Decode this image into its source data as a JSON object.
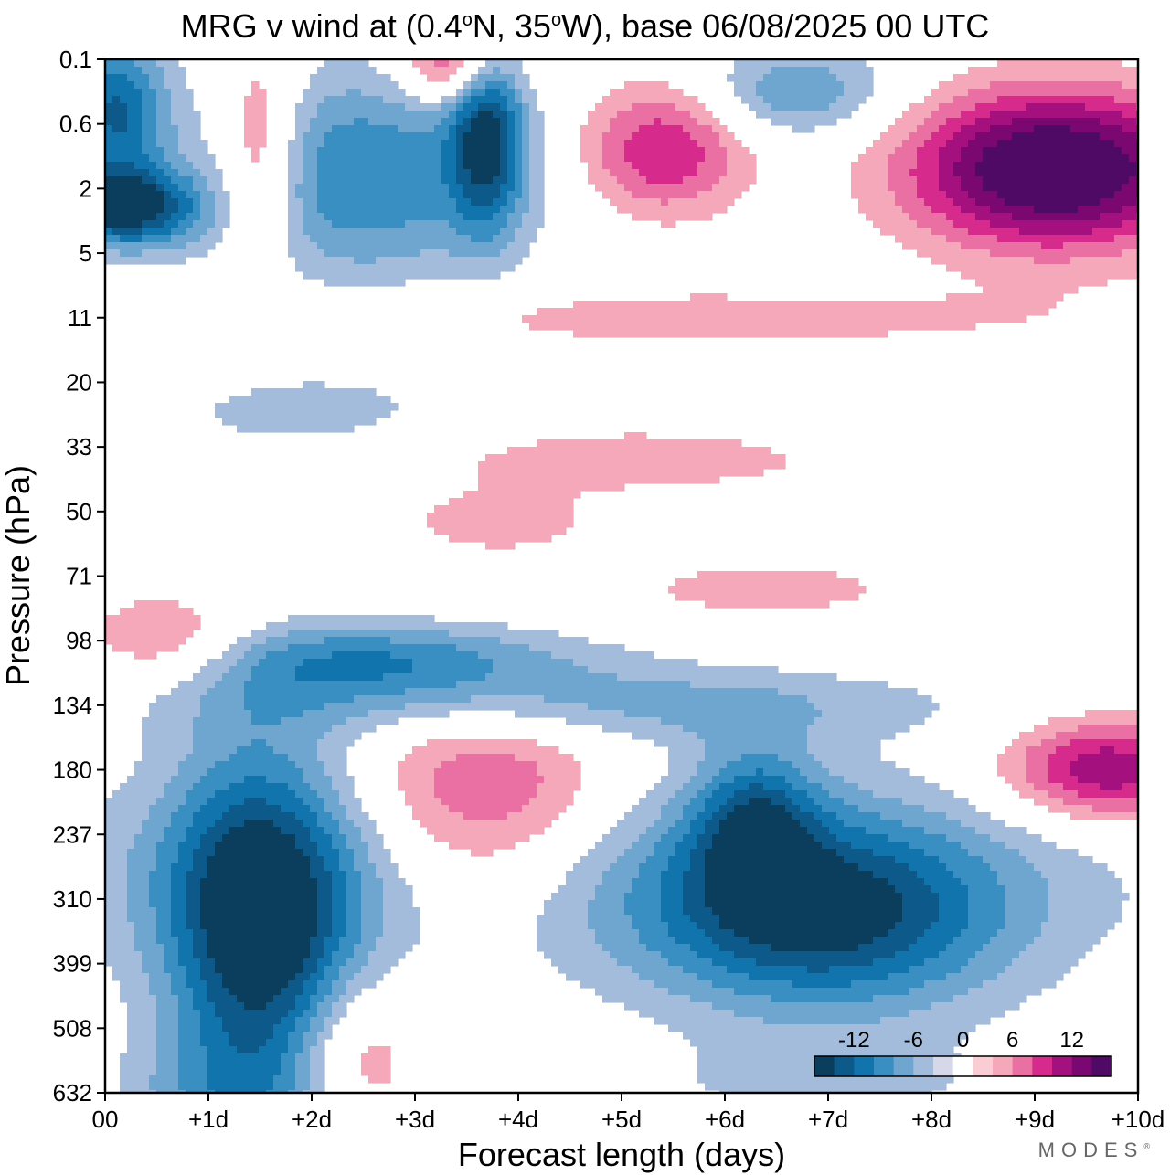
{
  "chart_data": {
    "type": "heatmap",
    "title_prefix": "MRG v wind at (0.4",
    "title_lat_unit": "N, 35",
    "title_lon_unit": "W),  base 06/08/2025  00 UTC",
    "degree_symbol": "o",
    "xlabel": "Forecast length (days)",
    "ylabel": "Pressure (hPa)",
    "x_ticks": [
      "00",
      "+1d",
      "+2d",
      "+3d",
      "+4d",
      "+5d",
      "+6d",
      "+7d",
      "+8d",
      "+9d",
      "+10d"
    ],
    "xlim": [
      0,
      10
    ],
    "y_ticks": [
      "0.1",
      "0.6",
      "2",
      "5",
      "11",
      "20",
      "33",
      "50",
      "71",
      "98",
      "134",
      "180",
      "237",
      "310",
      "399",
      "508",
      "632"
    ],
    "colorbar": {
      "tick_labels": [
        "-12",
        "-6",
        "0",
        "6",
        "12"
      ],
      "levels": [
        -14,
        -12,
        -10,
        -8,
        -6,
        -4,
        -2,
        0,
        2,
        4,
        6,
        8,
        10,
        12,
        14
      ],
      "colors": [
        "#0b3d5c",
        "#0d5a8a",
        "#1274ad",
        "#3a8fc2",
        "#6fa6cf",
        "#a4bcdb",
        "#d6d8ea",
        "#ffffff",
        "#f9cdd3",
        "#f4a8ba",
        "#ea6fa2",
        "#d62a8c",
        "#a4117e",
        "#7a0870",
        "#4e0a64"
      ]
    },
    "features": [
      {
        "day": 1.5,
        "level": 13.5,
        "value": -14,
        "ds": 0.9,
        "dl": 2.8
      },
      {
        "day": 3.7,
        "level": 11.6,
        "value": 8,
        "ds": 1.3,
        "dl": 1.8
      },
      {
        "day": 7.0,
        "level": 13.3,
        "value": -11,
        "ds": 1.7,
        "dl": 1.5
      },
      {
        "day": 6.3,
        "level": 11.8,
        "value": -8,
        "ds": 0.6,
        "dl": 1.2
      },
      {
        "day": 2.8,
        "level": 9.3,
        "value": -8,
        "ds": 1.9,
        "dl": 0.6
      },
      {
        "day": 4.6,
        "level": 10.0,
        "value": -5,
        "ds": 3.5,
        "dl": 0.6
      },
      {
        "day": 9.7,
        "level": 11.0,
        "value": 10,
        "ds": 1.0,
        "dl": 0.8
      },
      {
        "day": 0.6,
        "level": 9.0,
        "value": 5,
        "ds": 0.8,
        "dl": 0.7
      },
      {
        "day": 2.4,
        "level": 15.4,
        "value": 5,
        "ds": 0.6,
        "dl": 1.2
      },
      {
        "day": 9.2,
        "level": 1.7,
        "value": 16,
        "ds": 1.4,
        "dl": 1.2
      },
      {
        "day": 3.7,
        "level": 1.1,
        "value": -11,
        "ds": 0.35,
        "dl": 1.5
      },
      {
        "day": 0.2,
        "level": 2.3,
        "value": -13,
        "ds": 0.7,
        "dl": 0.6
      },
      {
        "day": 2.5,
        "level": 1.8,
        "value": -8,
        "ds": 1.5,
        "dl": 1.6
      },
      {
        "day": 0.1,
        "level": 0.8,
        "value": -10,
        "ds": 0.5,
        "dl": 1.2
      },
      {
        "day": 5.4,
        "level": 1.4,
        "value": 8,
        "ds": 0.8,
        "dl": 1.0
      },
      {
        "day": 1.5,
        "level": 1.5,
        "value": 7,
        "ds": 0.4,
        "dl": 1.6
      },
      {
        "day": 6.7,
        "level": 0.5,
        "value": -6,
        "ds": 0.9,
        "dl": 0.7
      },
      {
        "day": 3.4,
        "level": 0.1,
        "value": 8,
        "ds": 0.5,
        "dl": 0.6
      },
      {
        "day": 5.8,
        "level": 4.0,
        "value": 3,
        "ds": 4.0,
        "dl": 0.5
      },
      {
        "day": 5.0,
        "level": 6.2,
        "value": 3,
        "ds": 2.5,
        "dl": 0.6
      },
      {
        "day": 2.0,
        "level": 5.5,
        "value": -3,
        "ds": 1.5,
        "dl": 0.7
      },
      {
        "day": 6.4,
        "level": 8.2,
        "value": 3,
        "ds": 1.5,
        "dl": 0.5
      },
      {
        "day": 4.4,
        "level": 12.6,
        "value": -5,
        "ds": 5.0,
        "dl": 1.6
      },
      {
        "day": 1.0,
        "level": 16.0,
        "value": -3,
        "ds": 1.0,
        "dl": 0.8
      },
      {
        "day": 7.0,
        "level": 15.8,
        "value": -3,
        "ds": 1.5,
        "dl": 0.6
      },
      {
        "day": 3.8,
        "level": 7.2,
        "value": 3,
        "ds": 1.0,
        "dl": 0.5
      }
    ]
  },
  "watermark": "MODES",
  "watermark_mark": "®"
}
